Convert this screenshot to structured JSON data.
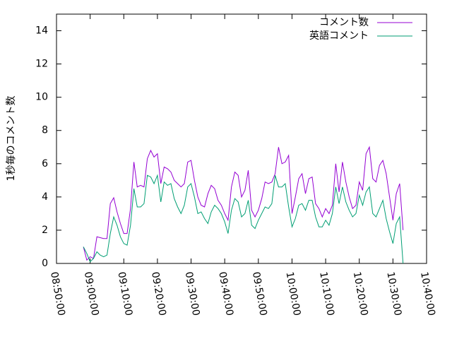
{
  "chart_data": {
    "type": "line",
    "y_label": "1秒毎のコメント数",
    "x": [
      "08:58:00",
      "08:59:00",
      "09:00:00",
      "09:01:00",
      "09:02:00",
      "09:03:00",
      "09:04:00",
      "09:05:00",
      "09:06:00",
      "09:07:00",
      "09:08:00",
      "09:09:00",
      "09:10:00",
      "09:11:00",
      "09:12:00",
      "09:13:00",
      "09:14:00",
      "09:15:00",
      "09:16:00",
      "09:17:00",
      "09:18:00",
      "09:19:00",
      "09:20:00",
      "09:21:00",
      "09:22:00",
      "09:23:00",
      "09:24:00",
      "09:25:00",
      "09:26:00",
      "09:27:00",
      "09:28:00",
      "09:29:00",
      "09:30:00",
      "09:31:00",
      "09:32:00",
      "09:33:00",
      "09:34:00",
      "09:35:00",
      "09:36:00",
      "09:37:00",
      "09:38:00",
      "09:39:00",
      "09:40:00",
      "09:41:00",
      "09:42:00",
      "09:43:00",
      "09:44:00",
      "09:45:00",
      "09:46:00",
      "09:47:00",
      "09:48:00",
      "09:49:00",
      "09:50:00",
      "09:51:00",
      "09:52:00",
      "09:53:00",
      "09:54:00",
      "09:55:00",
      "09:56:00",
      "09:57:00",
      "09:58:00",
      "09:59:00",
      "10:00:00",
      "10:01:00",
      "10:02:00",
      "10:03:00",
      "10:04:00",
      "10:05:00",
      "10:06:00",
      "10:07:00",
      "10:08:00",
      "10:09:00",
      "10:10:00",
      "10:11:00",
      "10:12:00",
      "10:13:00",
      "10:14:00",
      "10:15:00",
      "10:16:00",
      "10:17:00",
      "10:18:00",
      "10:19:00",
      "10:20:00",
      "10:21:00",
      "10:22:00",
      "10:23:00",
      "10:24:00",
      "10:25:00",
      "10:26:00",
      "10:27:00",
      "10:28:00",
      "10:29:00",
      "10:30:00",
      "10:31:00",
      "10:32:00",
      "10:33:00"
    ],
    "series": [
      {
        "name": "コメント数",
        "color": "#9400d3",
        "values": [
          1.0,
          0.2,
          0.4,
          0.3,
          1.6,
          1.55,
          1.5,
          1.5,
          3.6,
          3.95,
          3.1,
          2.4,
          1.8,
          1.8,
          3.3,
          6.1,
          4.6,
          4.7,
          4.6,
          6.3,
          6.8,
          6.4,
          6.6,
          4.8,
          5.8,
          5.7,
          5.5,
          5.0,
          4.8,
          4.6,
          4.8,
          6.1,
          6.2,
          5.0,
          4.0,
          3.5,
          3.4,
          4.2,
          4.7,
          4.5,
          3.8,
          3.5,
          3.0,
          2.6,
          4.6,
          5.5,
          5.3,
          4.0,
          4.4,
          5.6,
          3.2,
          2.8,
          3.2,
          3.9,
          4.9,
          4.8,
          4.9,
          5.4,
          7.0,
          6.0,
          6.1,
          6.5,
          3.0,
          4.0,
          5.1,
          5.4,
          4.2,
          5.1,
          5.2,
          3.6,
          3.3,
          2.8,
          3.3,
          3.0,
          3.5,
          6.0,
          4.3,
          6.1,
          4.9,
          4.0,
          3.3,
          3.5,
          4.9,
          4.4,
          6.6,
          7.0,
          5.1,
          4.9,
          5.9,
          6.2,
          5.4,
          4.0,
          2.6,
          4.2,
          4.8,
          2.0
        ]
      },
      {
        "name": "英語コメント",
        "color": "#009e73",
        "values": [
          1.0,
          0.6,
          0.1,
          0.3,
          0.7,
          0.5,
          0.4,
          0.5,
          1.8,
          2.8,
          2.3,
          1.6,
          1.2,
          1.1,
          2.3,
          4.5,
          3.4,
          3.4,
          3.6,
          5.3,
          5.2,
          4.8,
          5.3,
          3.7,
          4.9,
          4.7,
          4.8,
          3.9,
          3.4,
          3.0,
          3.5,
          4.6,
          4.8,
          4.0,
          3.0,
          3.1,
          2.7,
          2.4,
          3.1,
          3.5,
          3.3,
          3.0,
          2.5,
          1.8,
          3.2,
          3.9,
          3.7,
          2.8,
          3.0,
          3.8,
          2.3,
          2.1,
          2.6,
          3.0,
          3.4,
          3.3,
          3.6,
          5.3,
          4.6,
          4.6,
          4.8,
          3.4,
          2.2,
          2.7,
          3.5,
          3.6,
          3.2,
          3.8,
          3.8,
          2.8,
          2.2,
          2.2,
          2.6,
          2.3,
          3.0,
          4.6,
          3.6,
          4.6,
          3.7,
          3.2,
          2.8,
          3.0,
          4.1,
          3.5,
          4.3,
          4.6,
          3.0,
          2.8,
          3.3,
          3.8,
          2.7,
          1.9,
          1.2,
          2.4,
          2.8,
          0.0
        ]
      }
    ],
    "xlim": [
      "08:50:00",
      "10:40:00"
    ],
    "xticks": [
      "08:50:00",
      "09:00:00",
      "09:10:00",
      "09:20:00",
      "09:30:00",
      "09:40:00",
      "09:50:00",
      "10:00:00",
      "10:10:00",
      "10:20:00",
      "10:30:00",
      "10:40:00"
    ],
    "ylim": [
      0,
      15
    ],
    "yticks": [
      0,
      2,
      4,
      6,
      8,
      10,
      12,
      14
    ],
    "legend": "top-right"
  }
}
